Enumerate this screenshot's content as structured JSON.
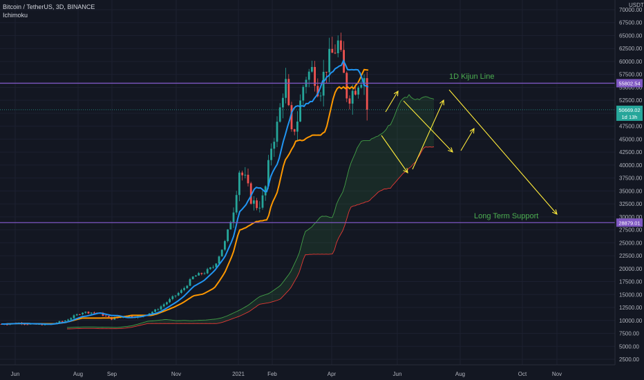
{
  "header": {
    "symbol_line": "Bitcoin / TetherUS, 3D, BINANCE",
    "indicator": "Ichimoku"
  },
  "colors": {
    "background": "#131722",
    "up": "#26a69a",
    "down": "#ef5350",
    "conversion_line": "#2196f3",
    "base_line": "#ff9800",
    "span_a": "#43a047",
    "span_b": "#e53935",
    "horizontal_line": "#7e57c2",
    "arrow": "#ffeb3b",
    "annotation": "#4caf50"
  },
  "chart_data": {
    "type": "line",
    "title": "Bitcoin / TetherUS, 3D, BINANCE",
    "axis_unit": "USDT",
    "y_scale": "log",
    "ylim": [
      2000,
      75000
    ],
    "y_ticks": [
      "70000.00",
      "67500.00",
      "65000.00",
      "62500.00",
      "60000.00",
      "57500.00",
      "55000.00",
      "52500.00",
      "50000.00",
      "47500.00",
      "45000.00",
      "42500.00",
      "40000.00",
      "37500.00",
      "35000.00",
      "32500.00",
      "30000.00",
      "27500.00",
      "25000.00",
      "22500.00",
      "20000.00",
      "17500.00",
      "15000.00",
      "12500.00",
      "10000.00",
      "7500.00",
      "5000.00",
      "2500.00"
    ],
    "x_ticks": [
      "Jun",
      "Aug",
      "Sep",
      "Nov",
      "2021",
      "Feb",
      "Apr",
      "Jun",
      "Aug",
      "Oct",
      "Nov"
    ],
    "x_range": [
      "2020-05-23",
      "2021-11-12"
    ],
    "series": [
      {
        "name": "Price",
        "values": [
          [
            "2020-05-27",
            9300
          ],
          [
            "2020-06-10",
            9500
          ],
          [
            "2020-06-25",
            9200
          ],
          [
            "2020-07-10",
            9250
          ],
          [
            "2020-07-25",
            10000
          ],
          [
            "2020-08-10",
            11600
          ],
          [
            "2020-08-25",
            11500
          ],
          [
            "2020-09-07",
            10300
          ],
          [
            "2020-09-20",
            10800
          ],
          [
            "2020-10-05",
            10700
          ],
          [
            "2020-10-20",
            12000
          ],
          [
            "2020-11-01",
            13800
          ],
          [
            "2020-11-15",
            16000
          ],
          [
            "2020-11-25",
            18500
          ],
          [
            "2020-12-05",
            19200
          ],
          [
            "2020-12-15",
            20500
          ],
          [
            "2020-12-25",
            25000
          ],
          [
            "2021-01-02",
            31000
          ],
          [
            "2021-01-08",
            39000
          ],
          [
            "2021-01-14",
            37000
          ],
          [
            "2021-01-20",
            33000
          ],
          [
            "2021-01-26",
            32000
          ],
          [
            "2021-02-01",
            34000
          ],
          [
            "2021-02-08",
            44000
          ],
          [
            "2021-02-14",
            48000
          ],
          [
            "2021-02-21",
            57000
          ],
          [
            "2021-02-27",
            45500
          ],
          [
            "2021-03-05",
            49000
          ],
          [
            "2021-03-12",
            57000
          ],
          [
            "2021-03-20",
            58500
          ],
          [
            "2021-03-26",
            54000
          ],
          [
            "2021-04-01",
            59000
          ],
          [
            "2021-04-13",
            63500
          ],
          [
            "2021-04-22",
            53000
          ],
          [
            "2021-04-28",
            54500
          ],
          [
            "2021-05-04",
            57000
          ],
          [
            "2021-05-10",
            57200
          ],
          [
            "2021-05-13",
            50669
          ]
        ]
      }
    ],
    "horizontal_lines": [
      {
        "label": "55802.54",
        "value": 55802.54
      },
      {
        "label": "28879.01",
        "value": 28879.01
      }
    ],
    "last_price": {
      "label": "50669.02",
      "sub": "1d 13h",
      "value": 50669.02
    },
    "annotations": [
      "1D Kijun Line",
      "Long Term Support"
    ]
  }
}
